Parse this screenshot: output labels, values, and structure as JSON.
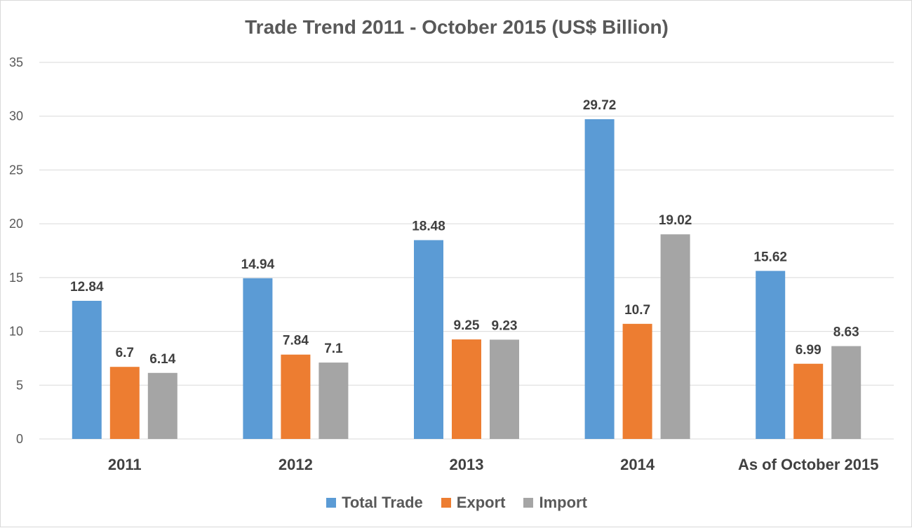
{
  "chart_data": {
    "type": "bar",
    "title": "Trade Trend 2011 - October 2015 (US$ Billion)",
    "xlabel": "",
    "ylabel": "",
    "categories": [
      "2011",
      "2012",
      "2013",
      "2014",
      "As of October 2015"
    ],
    "series": [
      {
        "name": "Total Trade",
        "color": "#5b9bd5",
        "values": [
          12.84,
          14.94,
          18.48,
          29.72,
          15.62
        ]
      },
      {
        "name": "Export",
        "color": "#ed7d31",
        "values": [
          6.7,
          7.84,
          9.25,
          10.7,
          6.99
        ]
      },
      {
        "name": "Import",
        "color": "#a5a5a5",
        "values": [
          6.14,
          7.1,
          9.23,
          19.02,
          8.63
        ]
      }
    ],
    "ylim": [
      0,
      35
    ],
    "yticks": [
      0,
      5,
      10,
      15,
      20,
      25,
      30,
      35
    ],
    "grid": true,
    "legend": "bottom"
  }
}
